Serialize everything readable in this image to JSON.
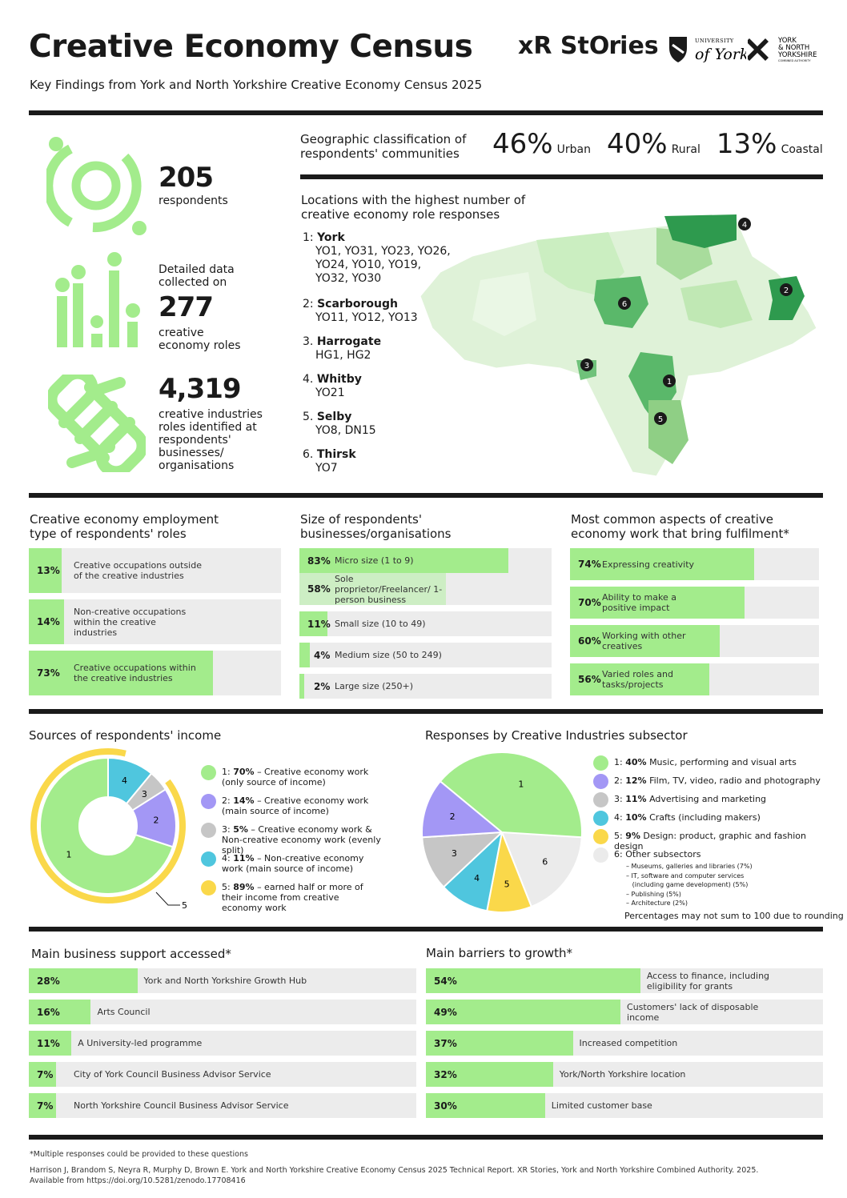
{
  "header": {
    "title": "Creative Economy Census",
    "subtitle": "Key Findings from York and North Yorkshire Creative Economy Census 2025",
    "logos": [
      "xR StOries",
      "UNIVERSITY of York",
      "YORK & NORTH YORKSHIRE COMBINED AUTHORITY"
    ]
  },
  "stats": [
    {
      "value": "205",
      "label": "respondents",
      "icon": "target-rings-icon"
    },
    {
      "pre": "Detailed data collected on",
      "value": "277",
      "label": "creative economy roles",
      "icon": "bar-dots-icon"
    },
    {
      "value": "4,319",
      "label": "creative industries roles identified at respondents' businesses/ organisations",
      "icon": "interlinked-icon"
    }
  ],
  "geo": {
    "title": "Geographic classification of respondents' communities",
    "items": [
      {
        "pct": "46%",
        "label": "Urban"
      },
      {
        "pct": "40%",
        "label": "Rural"
      },
      {
        "pct": "13%",
        "label": "Coastal"
      }
    ]
  },
  "locations": {
    "title": "Locations with the highest number of creative economy role responses",
    "items": [
      {
        "rank": "1:",
        "name": "York",
        "codes": "YO1, YO31, YO23, YO26, YO24, YO10, YO19, YO32, YO30"
      },
      {
        "rank": "2:",
        "name": "Scarborough",
        "codes": "YO11, YO12, YO13"
      },
      {
        "rank": "3.",
        "name": "Harrogate",
        "codes": "HG1, HG2"
      },
      {
        "rank": "4.",
        "name": "Whitby",
        "codes": "YO21"
      },
      {
        "rank": "5.",
        "name": "Selby",
        "codes": "YO8, DN15"
      },
      {
        "rank": "6.",
        "name": "Thirsk",
        "codes": "YO7"
      }
    ],
    "map_markers": [
      "1",
      "2",
      "3",
      "4",
      "5",
      "6"
    ]
  },
  "employment": {
    "title": "Creative economy employment type of respondents' roles",
    "items": [
      {
        "pct": 13,
        "label": "Creative occupations outside of the creative industries"
      },
      {
        "pct": 14,
        "label": "Non-creative occupations within the creative industries"
      },
      {
        "pct": 73,
        "label": "Creative occupations within the creative industries"
      }
    ]
  },
  "size": {
    "title": "Size of respondents' businesses/organisations",
    "items": [
      {
        "pct": 83,
        "label": "Micro size (1 to 9)"
      },
      {
        "pct": 58,
        "label": "Sole proprietor/Freelancer/ 1-person business",
        "sub": true
      },
      {
        "pct": 11,
        "label": "Small size (10 to 49)"
      },
      {
        "pct": 4,
        "label": "Medium size (50 to 249)"
      },
      {
        "pct": 2,
        "label": "Large size (250+)"
      }
    ]
  },
  "fulfilment": {
    "title": "Most common aspects of creative economy work that bring fulfilment*",
    "items": [
      {
        "pct": 74,
        "label": "Expressing creativity"
      },
      {
        "pct": 70,
        "label": "Ability to make a positive impact"
      },
      {
        "pct": 60,
        "label": "Working with other creatives"
      },
      {
        "pct": 56,
        "label": "Varied roles and tasks/projects"
      }
    ]
  },
  "income": {
    "title": "Sources of respondents' income",
    "slices": [
      {
        "n": "1",
        "pct": 70,
        "color": "#a3ec8c"
      },
      {
        "n": "2",
        "pct": 14,
        "color": "#a397f5"
      },
      {
        "n": "3",
        "pct": 5,
        "color": "#c6c6c6"
      },
      {
        "n": "4",
        "pct": 11,
        "color": "#4fc6de"
      }
    ],
    "ring": {
      "n": "5",
      "pct": 89,
      "color": "#fad84a"
    },
    "legend": [
      {
        "key": "1:",
        "pct": "70%",
        "text": "– Creative economy work (only source of income)",
        "color": "#a3ec8c"
      },
      {
        "key": "2:",
        "pct": "14%",
        "text": "– Creative economy work (main source of income)",
        "color": "#a397f5"
      },
      {
        "key": "3:",
        "pct": "5%",
        "text": "– Creative economy work & Non-creative economy work (evenly split)",
        "color": "#c6c6c6"
      },
      {
        "key": "4:",
        "pct": "11%",
        "text": "– Non-creative economy work (main source of income)",
        "color": "#4fc6de"
      },
      {
        "key": "5:",
        "pct": "89%",
        "text": "– earned half or more of their income from creative economy work",
        "color": "#fad84a"
      }
    ]
  },
  "subsector": {
    "title": "Responses by Creative Industries subsector",
    "slices": [
      {
        "n": "6",
        "pct": 19,
        "color": "#ebebeb"
      },
      {
        "n": "5",
        "pct": 9,
        "color": "#fad84a"
      },
      {
        "n": "4",
        "pct": 10,
        "color": "#4fc6de"
      },
      {
        "n": "3",
        "pct": 11,
        "color": "#c6c6c6"
      },
      {
        "n": "2",
        "pct": 12,
        "color": "#a397f5"
      },
      {
        "n": "1",
        "pct": 40,
        "color": "#a3ec8c"
      }
    ],
    "legend": [
      {
        "key": "1:",
        "pct": "40%",
        "text": "Music, performing and visual arts",
        "color": "#a3ec8c"
      },
      {
        "key": "2:",
        "pct": "12%",
        "text": "Film, TV, video, radio and photography",
        "color": "#a397f5"
      },
      {
        "key": "3:",
        "pct": "11%",
        "text": "Advertising and marketing",
        "color": "#c6c6c6"
      },
      {
        "key": "4:",
        "pct": "10%",
        "text": "Crafts (including makers)",
        "color": "#4fc6de"
      },
      {
        "key": "5:",
        "pct": "9%",
        "text": "Design: product, graphic and fashion design",
        "color": "#fad84a"
      },
      {
        "key": "6:",
        "pct": "",
        "text": "Other subsectors",
        "color": "#ebebeb"
      }
    ],
    "other": [
      "– Museums, galleries and libraries (7%)",
      "– IT, software and computer services",
      "   (including game development) (5%)",
      "– Publishing (5%)",
      "– Architecture (2%)"
    ],
    "note": "Percentages may not sum to 100 due to rounding"
  },
  "support": {
    "title": "Main business support accessed*",
    "items": [
      {
        "pct": 28,
        "label": "York and North Yorkshire Growth Hub"
      },
      {
        "pct": 16,
        "label": "Arts Council"
      },
      {
        "pct": 11,
        "label": "A University-led programme"
      },
      {
        "pct": 7,
        "label": "City of York Council Business Advisor Service"
      },
      {
        "pct": 7,
        "label": "North Yorkshire Council Business Advisor Service"
      }
    ]
  },
  "barriers": {
    "title": "Main barriers to growth*",
    "items": [
      {
        "pct": 54,
        "label": "Access to finance, including eligibility for grants"
      },
      {
        "pct": 49,
        "label": "Customers' lack of disposable income"
      },
      {
        "pct": 37,
        "label": "Increased competition"
      },
      {
        "pct": 32,
        "label": "York/North Yorkshire location"
      },
      {
        "pct": 30,
        "label": "Limited customer base"
      }
    ]
  },
  "footer": {
    "note": "*Multiple responses could be provided to these questions",
    "citation": "Harrison J, Brandom S, Neyra R, Murphy D, Brown E. York and North Yorkshire Creative Economy Census 2025 Technical Report. XR Stories, York and North Yorkshire Combined Authority. 2025.",
    "link": "Available from https://doi.org/10.5281/zenodo.17708416"
  },
  "colors": {
    "accent": "#a3ec8c",
    "track": "#ececec",
    "text": "#1a1a1a"
  }
}
